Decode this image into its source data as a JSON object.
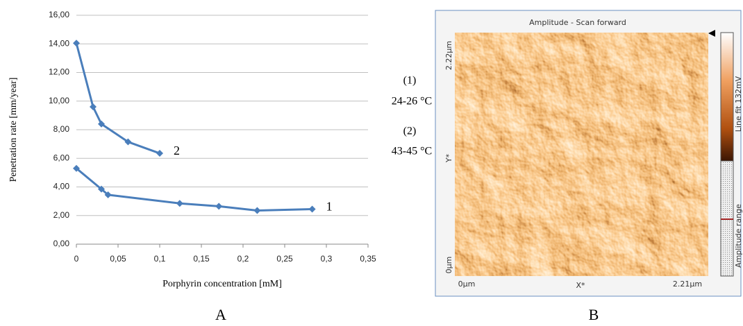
{
  "chart_data": {
    "type": "line",
    "x_label": "Porphyrin concentration [mM]",
    "y_label": "Penetration rate [mm/year]",
    "xlim": [
      0,
      0.35
    ],
    "xticks": [
      0,
      {
        "value": 0.05,
        "label": "0,05"
      },
      {
        "value": 0.1,
        "label": "0,1"
      },
      {
        "value": 0.15,
        "label": "0,15"
      },
      {
        "value": 0.2,
        "label": "0,2"
      },
      {
        "value": 0.25,
        "label": "0,25"
      },
      {
        "value": 0.3,
        "label": "0,3"
      },
      {
        "value": 0.35,
        "label": "0,35"
      }
    ],
    "ylim": [
      0,
      16
    ],
    "yticks": [
      {
        "value": 0,
        "label": "0,00"
      },
      {
        "value": 2,
        "label": "2,00"
      },
      {
        "value": 4,
        "label": "4,00"
      },
      {
        "value": 6,
        "label": "6,00"
      },
      {
        "value": 8,
        "label": "8,00"
      },
      {
        "value": 10,
        "label": "10,00"
      },
      {
        "value": 12,
        "label": "12,00"
      },
      {
        "value": 14,
        "label": "14,00"
      },
      {
        "value": 16,
        "label": "16,00"
      }
    ],
    "grid": true,
    "series": [
      {
        "name": "1",
        "color": "#4a7ebb",
        "x": [
          0,
          0.03,
          0.038,
          0.124,
          0.171,
          0.217,
          0.283
        ],
        "values": [
          5.3,
          3.85,
          3.45,
          2.85,
          2.65,
          2.35,
          2.45
        ]
      },
      {
        "name": "2",
        "color": "#4a7ebb",
        "x": [
          0,
          0.02,
          0.03,
          0.062,
          0.1
        ],
        "values": [
          14.05,
          9.6,
          8.4,
          7.15,
          6.35
        ]
      }
    ],
    "annotations": [
      "(1)",
      "24-26 °C",
      "(2)",
      "43-45 °C"
    ],
    "panel_label": "A"
  },
  "image": {
    "title": "Amplitude - Scan forward",
    "y_max": "2.22µm",
    "y_min": "0µm",
    "y_axis": "Y*",
    "x_min": "0µm",
    "x_axis": "X*",
    "x_max": "2.21µm",
    "colorbar_label": "Line fit 132mV",
    "range_label": "Amplitude range",
    "panel_label": "B"
  }
}
